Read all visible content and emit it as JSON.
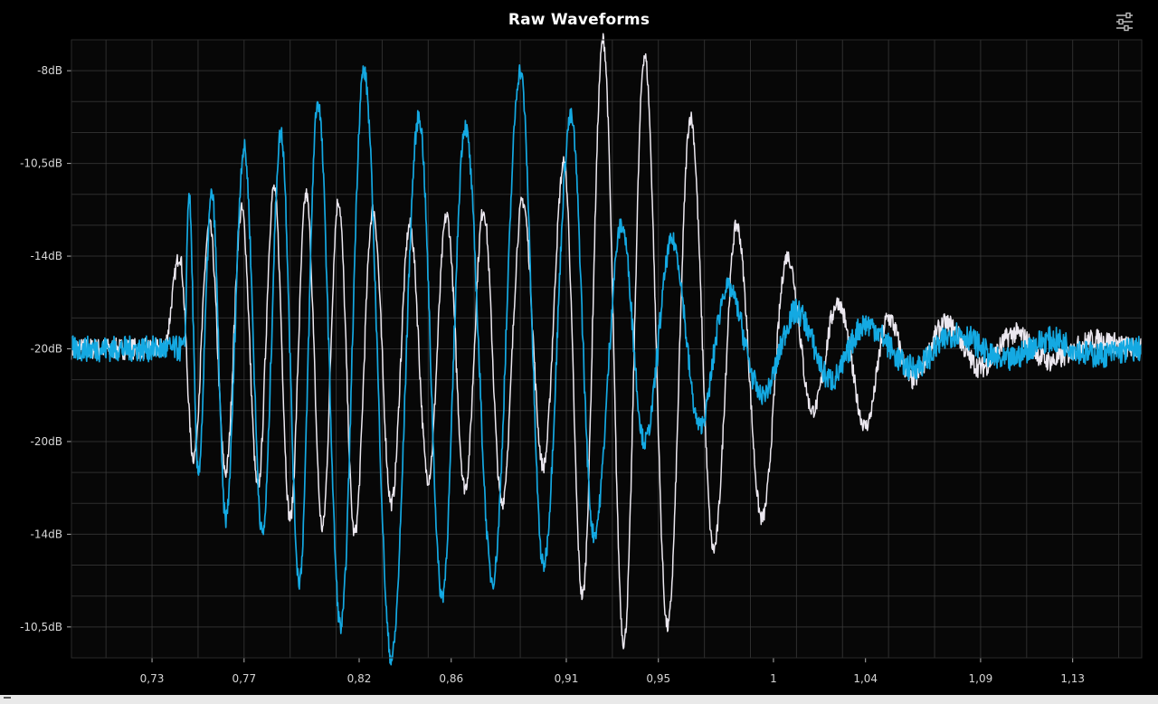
{
  "window": {
    "title": "Raw Waveforms",
    "settings_icon": "sliders-settings-icon"
  },
  "colors": {
    "background": "#000000",
    "plot_background": "#070707",
    "grid": "#3c3c3c",
    "axis": "#b0b0b0",
    "tick_label": "#d6d6d6",
    "series_white": "#ece8f0",
    "series_blue": "#14a9e2"
  },
  "chart_data": {
    "type": "line",
    "title": "Raw Waveforms",
    "xlabel": "",
    "ylabel": "",
    "xlim": [
      0.695,
      1.16
    ],
    "x_ticks": [
      0.73,
      0.77,
      0.82,
      0.86,
      0.91,
      0.95,
      1.0,
      1.04,
      1.09,
      1.13
    ],
    "x_tick_labels": [
      "0,73",
      "0,77",
      "0,82",
      "0,86",
      "0,91",
      "0,95",
      "1",
      "1,04",
      "1,09",
      "1,13"
    ],
    "ylim": [
      -1,
      1
    ],
    "y_ticks": [
      0.9,
      0.6,
      0.3,
      0.0,
      -0.3,
      -0.6,
      -0.9
    ],
    "y_tick_labels": [
      "-8dB",
      "-10,5dB",
      "-14dB",
      "-20dB",
      "-∞",
      "-20dB",
      "-14dB",
      "-10,5dB"
    ],
    "y_tick_values": [
      0.9,
      0.6,
      0.3,
      0.0,
      0.0,
      -0.3,
      -0.6,
      -0.9
    ],
    "grid": true,
    "legend": "none",
    "series": [
      {
        "color": "#ece8f0",
        "x": [
          0.695,
          0.735,
          0.742,
          0.748,
          0.755,
          0.762,
          0.769,
          0.776,
          0.783,
          0.79,
          0.797,
          0.804,
          0.811,
          0.818,
          0.826,
          0.834,
          0.842,
          0.85,
          0.858,
          0.866,
          0.874,
          0.882,
          0.891,
          0.9,
          0.909,
          0.917,
          0.926,
          0.935,
          0.944,
          0.954,
          0.964,
          0.974,
          0.984,
          0.995,
          1.006,
          1.017,
          1.028,
          1.04,
          1.05,
          1.06,
          1.075,
          1.09,
          1.105,
          1.12,
          1.14,
          1.16
        ],
        "y": [
          0.0,
          0.0,
          0.3,
          -0.35,
          0.4,
          -0.4,
          0.45,
          -0.45,
          0.52,
          -0.55,
          0.5,
          -0.58,
          0.48,
          -0.6,
          0.45,
          -0.5,
          0.4,
          -0.42,
          0.43,
          -0.45,
          0.45,
          -0.5,
          0.48,
          -0.38,
          0.6,
          -0.8,
          1.0,
          -0.95,
          0.95,
          -0.9,
          0.75,
          -0.65,
          0.4,
          -0.55,
          0.3,
          -0.2,
          0.15,
          -0.25,
          0.1,
          -0.1,
          0.08,
          -0.06,
          0.05,
          -0.04,
          0.03,
          0.0
        ]
      },
      {
        "color": "#14a9e2",
        "x": [
          0.695,
          0.744,
          0.746,
          0.75,
          0.756,
          0.762,
          0.77,
          0.778,
          0.786,
          0.794,
          0.802,
          0.812,
          0.822,
          0.834,
          0.846,
          0.856,
          0.866,
          0.878,
          0.89,
          0.9,
          0.912,
          0.922,
          0.934,
          0.944,
          0.956,
          0.968,
          0.98,
          0.995,
          1.01,
          1.025,
          1.04,
          1.06,
          1.08,
          1.1,
          1.12,
          1.14,
          1.16
        ],
        "y": [
          0.0,
          0.0,
          0.5,
          -0.4,
          0.5,
          -0.55,
          0.65,
          -0.6,
          0.7,
          -0.75,
          0.8,
          -0.9,
          0.9,
          -1.0,
          0.75,
          -0.8,
          0.72,
          -0.75,
          0.9,
          -0.7,
          0.75,
          -0.6,
          0.4,
          -0.3,
          0.35,
          -0.25,
          0.2,
          -0.15,
          0.12,
          -0.1,
          0.08,
          -0.06,
          0.05,
          -0.04,
          0.03,
          -0.02,
          0.0
        ]
      }
    ]
  }
}
